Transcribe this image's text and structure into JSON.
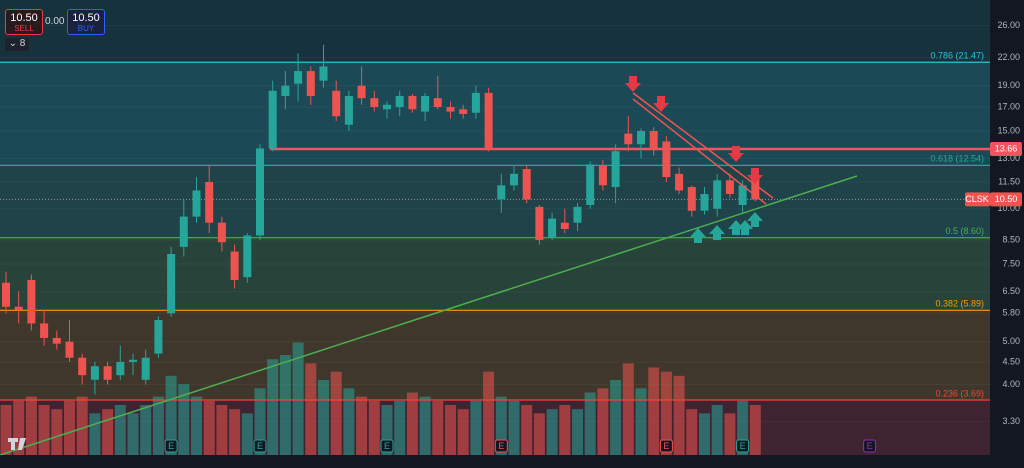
{
  "toolbar": {
    "sell_price": "10.50",
    "sell_label": "SELL",
    "spread": "0.00",
    "buy_price": "10.50",
    "buy_label": "BUY",
    "interval": "8"
  },
  "chart_data": {
    "type": "candlestick",
    "symbol": "CLSK",
    "last_price": 10.5,
    "last_price_label": "10.50",
    "up_color": "#26a69a",
    "down_color": "#ef5350",
    "log_scale": true,
    "ylim": [
      2.77,
      29.7
    ],
    "yticks": [
      {
        "value": 26,
        "label": "26.00"
      },
      {
        "value": 22,
        "label": "22.00"
      },
      {
        "value": 19,
        "label": "19.00"
      },
      {
        "value": 17,
        "label": "17.00"
      },
      {
        "value": 15,
        "label": "15.00"
      },
      {
        "value": 13,
        "label": "13.00"
      },
      {
        "value": 11.5,
        "label": "11.50"
      },
      {
        "value": 10,
        "label": "10.00"
      },
      {
        "value": 8.5,
        "label": "8.50"
      },
      {
        "value": 7.5,
        "label": "7.50"
      },
      {
        "value": 6.5,
        "label": "6.50"
      },
      {
        "value": 5.8,
        "label": "5.80"
      },
      {
        "value": 5,
        "label": "5.00"
      },
      {
        "value": 4.5,
        "label": "4.50"
      },
      {
        "value": 4,
        "label": "4.00"
      },
      {
        "value": 3.3,
        "label": "3.30"
      }
    ],
    "open": [
      6.8,
      6.0,
      6.9,
      5.5,
      5.1,
      5.0,
      4.6,
      4.1,
      4.4,
      4.2,
      4.5,
      4.1,
      4.7,
      5.8,
      8.2,
      9.6,
      11.5,
      9.3,
      8.0,
      7.0,
      8.7,
      13.7,
      18.0,
      19.2,
      20.5,
      19.5,
      18.5,
      15.5,
      19.0,
      17.8,
      16.8,
      17.0,
      18.0,
      16.6,
      17.8,
      17.0,
      16.8,
      16.5,
      18.3,
      10.5,
      11.3,
      12.3,
      10.1,
      8.6,
      9.3,
      9.3,
      10.2,
      12.5,
      11.2,
      14.8,
      14.0,
      15.0,
      14.2,
      12.0,
      11.2,
      9.9,
      10.0,
      11.6,
      10.2,
      11.8
    ],
    "high": [
      7.2,
      6.5,
      7.1,
      5.9,
      5.3,
      5.6,
      4.7,
      4.5,
      4.5,
      4.9,
      4.7,
      4.8,
      5.7,
      8.2,
      10.5,
      11.8,
      12.5,
      9.6,
      8.3,
      8.8,
      14.0,
      19.5,
      20.5,
      22.5,
      21.0,
      23.5,
      19.5,
      18.5,
      21.0,
      18.5,
      17.5,
      18.5,
      18.2,
      18.3,
      20.0,
      17.5,
      17.2,
      19.0,
      18.8,
      12.0,
      12.5,
      12.5,
      10.2,
      9.8,
      10.0,
      10.3,
      12.8,
      12.9,
      14.0,
      16.2,
      15.2,
      15.3,
      14.6,
      12.4,
      11.3,
      11.2,
      12.0,
      12.0,
      11.6,
      12.0
    ],
    "low": [
      5.8,
      5.5,
      5.3,
      4.9,
      4.8,
      4.5,
      4.0,
      3.8,
      4.0,
      4.1,
      4.2,
      4.0,
      4.6,
      5.7,
      7.8,
      9.3,
      8.8,
      8.0,
      6.6,
      6.8,
      8.5,
      13.5,
      16.8,
      17.5,
      17.2,
      18.8,
      15.8,
      15.0,
      17.2,
      16.6,
      16.0,
      16.2,
      16.5,
      15.8,
      16.8,
      16.0,
      16.0,
      16.0,
      13.5,
      9.8,
      11.0,
      10.3,
      8.3,
      8.5,
      8.8,
      8.9,
      10.0,
      11.0,
      10.3,
      13.5,
      13.0,
      13.2,
      11.5,
      10.8,
      9.6,
      9.7,
      9.6,
      10.6,
      9.8,
      10.4
    ],
    "close": [
      6.0,
      5.9,
      5.5,
      5.1,
      4.95,
      4.6,
      4.2,
      4.4,
      4.1,
      4.5,
      4.55,
      4.6,
      5.6,
      7.9,
      9.6,
      11.0,
      9.3,
      8.4,
      6.9,
      8.7,
      13.7,
      18.5,
      19.0,
      20.5,
      18.0,
      21.0,
      16.2,
      18.0,
      17.8,
      17.0,
      17.2,
      18.0,
      16.8,
      18.0,
      17.0,
      16.6,
      16.4,
      18.3,
      13.7,
      11.3,
      12.0,
      10.5,
      8.5,
      9.5,
      9.0,
      10.1,
      12.6,
      11.3,
      13.5,
      14.0,
      15.0,
      13.6,
      11.8,
      11.0,
      9.9,
      10.8,
      11.6,
      10.8,
      11.3,
      10.5
    ],
    "volume": [
      12,
      13,
      14,
      12,
      11,
      13,
      14,
      10,
      11,
      12,
      10,
      12,
      14,
      19,
      17,
      14,
      13,
      12,
      11,
      10,
      16,
      23,
      24,
      27,
      22,
      18,
      20,
      16,
      14,
      13,
      12,
      13,
      15,
      14,
      13,
      12,
      11,
      13,
      20,
      14,
      13,
      12,
      10,
      11,
      12,
      11,
      15,
      16,
      18,
      22,
      16,
      21,
      20,
      19,
      11,
      10,
      12,
      10,
      13,
      12
    ],
    "volume_lim": [
      0,
      30
    ],
    "levels": [
      {
        "label": "0.786 (21.47)",
        "value": 21.47,
        "color": "#26c6da"
      },
      {
        "label": "0.618 (12.54)",
        "value": 12.54,
        "color": "#26a69a"
      },
      {
        "label": "0.5 (8.60)",
        "value": 8.6,
        "color": "#4caf50"
      },
      {
        "label": "0.382 (5.89)",
        "value": 5.89,
        "color": "#ff9800"
      },
      {
        "label": "0.236 (3.69)",
        "value": 3.69,
        "color": "#f44336"
      }
    ],
    "zone_colors": [
      "#16323c",
      "#1b4a56",
      "#1f4349",
      "#28443a",
      "#40372c",
      "#3e2330"
    ],
    "resistance": {
      "value": 13.66,
      "label": "13.66",
      "color": "#f05461"
    },
    "events": [
      {
        "label": "E",
        "index": 13,
        "color": "#26a69a"
      },
      {
        "label": "E",
        "index": 20,
        "color": "#26a69a"
      },
      {
        "label": "E",
        "index": 30,
        "color": "#26a69a"
      },
      {
        "label": "E",
        "index": 39,
        "color": "#ef5350"
      },
      {
        "label": "E",
        "index": 52,
        "color": "#ef5350"
      },
      {
        "label": "E",
        "index": 58,
        "color": "#26a69a"
      },
      {
        "label": "E",
        "index": 68,
        "color": "#9c27b0"
      }
    ]
  }
}
